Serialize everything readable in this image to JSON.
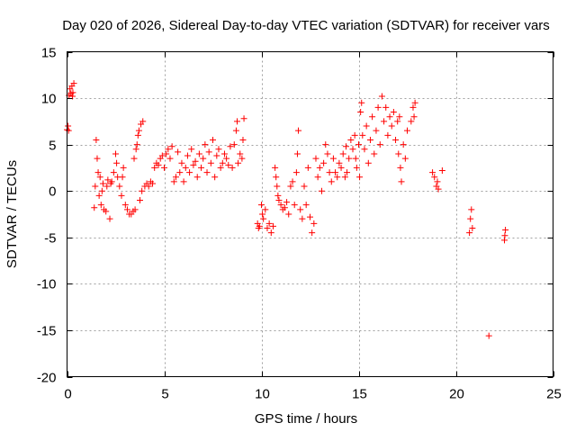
{
  "chart_data": {
    "type": "scatter",
    "title": "Day 020 of 2026, Sidereal Day-to-day VTEC variation (SDTVAR) for receiver vars",
    "xlabel": "GPS time / hours",
    "ylabel": "SDTVAR / TECUs",
    "xlim": [
      0,
      25
    ],
    "ylim": [
      -20,
      15
    ],
    "xticks": [
      0,
      5,
      10,
      15,
      20,
      25
    ],
    "xtick_labels": [
      "0",
      "5",
      "10",
      "15",
      "20",
      "25"
    ],
    "yticks": [
      15,
      10,
      5,
      0,
      -5,
      -10,
      -15,
      -20
    ],
    "ytick_labels": [
      "15",
      "10",
      "5",
      "0",
      "-5",
      "-10",
      "-15",
      "-20"
    ],
    "grid": true,
    "marker": "+",
    "color": "#ff0000",
    "series": [
      {
        "name": "vars",
        "points": [
          [
            0.0,
            6.6
          ],
          [
            0.05,
            7.0
          ],
          [
            0.08,
            6.5
          ],
          [
            0.1,
            10.3
          ],
          [
            0.15,
            11.0
          ],
          [
            0.2,
            10.5
          ],
          [
            0.25,
            11.3
          ],
          [
            0.3,
            10.6
          ],
          [
            0.35,
            11.6
          ],
          [
            0.28,
            10.2
          ],
          [
            1.4,
            -1.8
          ],
          [
            1.45,
            0.5
          ],
          [
            1.5,
            5.5
          ],
          [
            1.55,
            3.5
          ],
          [
            1.6,
            2.0
          ],
          [
            1.65,
            -0.5
          ],
          [
            1.7,
            1.5
          ],
          [
            1.75,
            -1.5
          ],
          [
            1.8,
            0.0
          ],
          [
            1.85,
            0.8
          ],
          [
            1.9,
            -2.0
          ],
          [
            2.0,
            -2.2
          ],
          [
            2.05,
            0.5
          ],
          [
            2.1,
            1.2
          ],
          [
            2.2,
            -3.0
          ],
          [
            2.25,
            0.8
          ],
          [
            2.3,
            1.0
          ],
          [
            2.4,
            2.0
          ],
          [
            2.5,
            4.0
          ],
          [
            2.55,
            3.0
          ],
          [
            2.6,
            1.5
          ],
          [
            2.7,
            0.5
          ],
          [
            2.8,
            -0.5
          ],
          [
            2.85,
            1.5
          ],
          [
            2.9,
            2.5
          ],
          [
            3.0,
            -1.5
          ],
          [
            3.1,
            -2.0
          ],
          [
            3.2,
            -2.5
          ],
          [
            3.3,
            -2.5
          ],
          [
            3.4,
            -2.2
          ],
          [
            3.45,
            3.5
          ],
          [
            3.5,
            -2.0
          ],
          [
            3.55,
            4.5
          ],
          [
            3.6,
            5.0
          ],
          [
            3.65,
            6.0
          ],
          [
            3.7,
            6.5
          ],
          [
            3.75,
            -1.0
          ],
          [
            3.8,
            7.2
          ],
          [
            3.85,
            0.0
          ],
          [
            3.9,
            7.5
          ],
          [
            4.0,
            0.5
          ],
          [
            4.1,
            0.8
          ],
          [
            4.2,
            0.5
          ],
          [
            4.3,
            1.0
          ],
          [
            4.4,
            0.8
          ],
          [
            4.5,
            2.5
          ],
          [
            4.6,
            3.0
          ],
          [
            4.7,
            2.8
          ],
          [
            4.8,
            3.5
          ],
          [
            4.9,
            3.8
          ],
          [
            5.0,
            2.5
          ],
          [
            5.1,
            4.0
          ],
          [
            5.2,
            4.5
          ],
          [
            5.3,
            3.5
          ],
          [
            5.4,
            4.8
          ],
          [
            5.5,
            1.0
          ],
          [
            5.6,
            1.5
          ],
          [
            5.7,
            4.2
          ],
          [
            5.8,
            2.0
          ],
          [
            5.9,
            3.0
          ],
          [
            6.0,
            1.0
          ],
          [
            6.1,
            2.5
          ],
          [
            6.2,
            3.8
          ],
          [
            6.3,
            2.0
          ],
          [
            6.4,
            4.5
          ],
          [
            6.5,
            2.8
          ],
          [
            6.6,
            3.2
          ],
          [
            6.7,
            1.5
          ],
          [
            6.8,
            4.0
          ],
          [
            6.9,
            2.5
          ],
          [
            7.0,
            3.5
          ],
          [
            7.1,
            5.0
          ],
          [
            7.2,
            2.0
          ],
          [
            7.3,
            4.2
          ],
          [
            7.4,
            3.0
          ],
          [
            7.5,
            5.5
          ],
          [
            7.6,
            1.5
          ],
          [
            7.7,
            3.8
          ],
          [
            7.8,
            4.5
          ],
          [
            7.9,
            2.5
          ],
          [
            8.0,
            3.0
          ],
          [
            8.1,
            4.0
          ],
          [
            8.2,
            3.5
          ],
          [
            8.3,
            2.8
          ],
          [
            8.4,
            4.8
          ],
          [
            8.5,
            2.5
          ],
          [
            8.6,
            5.0
          ],
          [
            8.7,
            6.5
          ],
          [
            8.75,
            7.5
          ],
          [
            8.8,
            3.0
          ],
          [
            8.9,
            4.0
          ],
          [
            9.0,
            3.5
          ],
          [
            9.05,
            5.5
          ],
          [
            9.1,
            7.8
          ],
          [
            9.8,
            -3.5
          ],
          [
            9.85,
            -4.0
          ],
          [
            9.9,
            -3.8
          ],
          [
            10.0,
            -1.5
          ],
          [
            10.05,
            -2.5
          ],
          [
            10.1,
            -3.0
          ],
          [
            10.2,
            -2.0
          ],
          [
            10.3,
            -4.0
          ],
          [
            10.4,
            -3.5
          ],
          [
            10.5,
            -4.5
          ],
          [
            10.6,
            -3.8
          ],
          [
            10.7,
            2.5
          ],
          [
            10.75,
            1.5
          ],
          [
            10.8,
            0.5
          ],
          [
            10.85,
            -0.5
          ],
          [
            10.9,
            -1.0
          ],
          [
            11.0,
            -1.5
          ],
          [
            11.1,
            -2.0
          ],
          [
            11.2,
            -1.8
          ],
          [
            11.3,
            -1.2
          ],
          [
            11.4,
            -2.5
          ],
          [
            11.5,
            0.5
          ],
          [
            11.6,
            1.0
          ],
          [
            11.7,
            -1.5
          ],
          [
            11.8,
            2.0
          ],
          [
            11.85,
            4.0
          ],
          [
            11.9,
            6.5
          ],
          [
            12.0,
            -2.0
          ],
          [
            12.1,
            -3.0
          ],
          [
            12.2,
            0.5
          ],
          [
            12.3,
            -1.5
          ],
          [
            12.4,
            2.5
          ],
          [
            12.5,
            -2.8
          ],
          [
            12.6,
            -4.5
          ],
          [
            12.7,
            -3.5
          ],
          [
            12.8,
            3.5
          ],
          [
            12.9,
            1.5
          ],
          [
            13.0,
            2.5
          ],
          [
            13.1,
            0.0
          ],
          [
            13.2,
            3.0
          ],
          [
            13.3,
            5.0
          ],
          [
            13.4,
            4.0
          ],
          [
            13.5,
            2.0
          ],
          [
            13.6,
            1.0
          ],
          [
            13.7,
            3.5
          ],
          [
            13.8,
            2.0
          ],
          [
            13.9,
            1.5
          ],
          [
            14.0,
            3.0
          ],
          [
            14.1,
            2.5
          ],
          [
            14.2,
            4.0
          ],
          [
            14.3,
            1.5
          ],
          [
            14.35,
            4.8
          ],
          [
            14.4,
            2.0
          ],
          [
            14.5,
            3.5
          ],
          [
            14.6,
            5.5
          ],
          [
            14.7,
            4.5
          ],
          [
            14.8,
            6.0
          ],
          [
            14.85,
            3.5
          ],
          [
            14.9,
            2.5
          ],
          [
            15.0,
            5.0
          ],
          [
            15.05,
            1.5
          ],
          [
            15.1,
            8.5
          ],
          [
            15.15,
            9.5
          ],
          [
            15.2,
            6.0
          ],
          [
            15.3,
            4.5
          ],
          [
            15.4,
            7.0
          ],
          [
            15.5,
            3.0
          ],
          [
            15.6,
            5.5
          ],
          [
            15.7,
            8.0
          ],
          [
            15.8,
            4.0
          ],
          [
            15.9,
            6.5
          ],
          [
            16.0,
            9.0
          ],
          [
            16.1,
            5.0
          ],
          [
            16.2,
            10.2
          ],
          [
            16.3,
            7.5
          ],
          [
            16.4,
            9.0
          ],
          [
            16.5,
            6.0
          ],
          [
            16.6,
            8.0
          ],
          [
            16.7,
            7.0
          ],
          [
            16.8,
            8.5
          ],
          [
            16.9,
            5.5
          ],
          [
            17.0,
            7.5
          ],
          [
            17.05,
            4.0
          ],
          [
            17.1,
            8.0
          ],
          [
            17.15,
            2.5
          ],
          [
            17.2,
            1.0
          ],
          [
            17.3,
            5.0
          ],
          [
            17.4,
            3.5
          ],
          [
            17.5,
            6.5
          ],
          [
            17.7,
            7.5
          ],
          [
            17.8,
            9.0
          ],
          [
            17.85,
            8.0
          ],
          [
            17.9,
            9.5
          ],
          [
            18.8,
            2.0
          ],
          [
            18.9,
            1.5
          ],
          [
            19.0,
            0.5
          ],
          [
            19.05,
            1.0
          ],
          [
            19.1,
            0.2
          ],
          [
            19.3,
            2.2
          ],
          [
            20.7,
            -4.5
          ],
          [
            20.75,
            -3.0
          ],
          [
            20.8,
            -2.0
          ],
          [
            20.85,
            -4.0
          ],
          [
            21.7,
            -15.6
          ],
          [
            22.5,
            -5.3
          ],
          [
            22.55,
            -4.2
          ],
          [
            22.52,
            -4.8
          ]
        ]
      }
    ]
  }
}
